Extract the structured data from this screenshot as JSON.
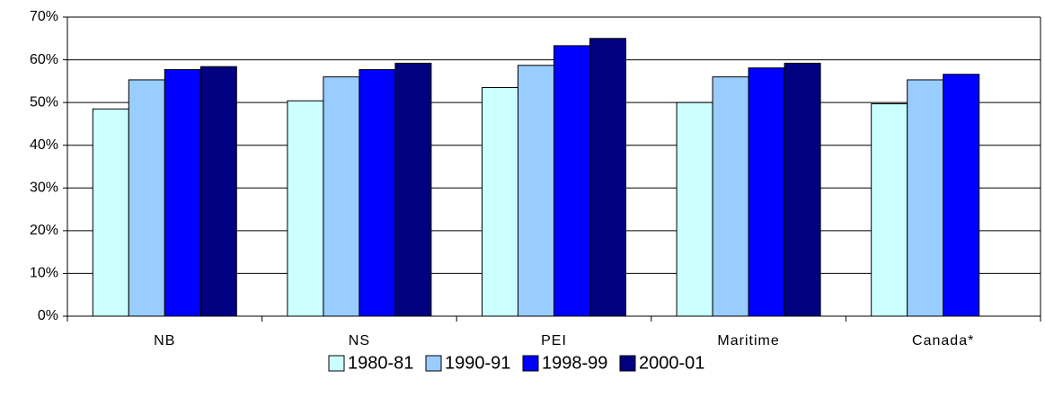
{
  "chart_data": {
    "type": "bar",
    "categories": [
      "NB",
      "NS",
      "PEI",
      "Maritime",
      "Canada*"
    ],
    "series": [
      {
        "name": "1980-81",
        "color": "#ccffff",
        "values": [
          48.5,
          50.4,
          53.5,
          50,
          49.7
        ]
      },
      {
        "name": "1990-91",
        "color": "#99ccff",
        "values": [
          55.3,
          56,
          58.7,
          56,
          55.3
        ]
      },
      {
        "name": "1998-99",
        "color": "#0000ff",
        "values": [
          57.7,
          57.7,
          63.3,
          58.1,
          56.6
        ]
      },
      {
        "name": "2000-01",
        "color": "#000080",
        "values": [
          58.4,
          59.2,
          65,
          59.2,
          null
        ]
      }
    ],
    "ylim": [
      0,
      70
    ],
    "yticks": [
      {
        "value": 0,
        "label": "0%"
      },
      {
        "value": 10,
        "label": "10%"
      },
      {
        "value": 20,
        "label": "20%"
      },
      {
        "value": 30,
        "label": "30%"
      },
      {
        "value": 40,
        "label": "40%"
      },
      {
        "value": 50,
        "label": "50%"
      },
      {
        "value": 60,
        "label": "60%"
      },
      {
        "value": 70,
        "label": "70%"
      }
    ],
    "grid": true,
    "legend": "bottom"
  }
}
